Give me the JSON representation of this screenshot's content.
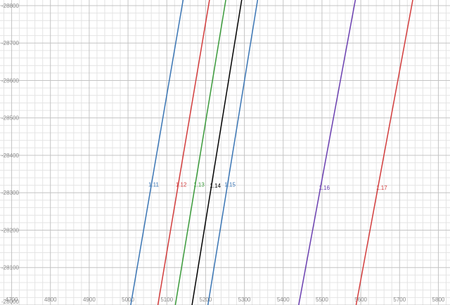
{
  "chart_data": {
    "type": "line",
    "title": "",
    "xlabel": "",
    "ylabel": "",
    "xlim": [
      4670,
      5830
    ],
    "ylim": [
      28000,
      28815
    ],
    "x_ticks": [
      "4700",
      "4800",
      "4900",
      "5000",
      "5100",
      "5200",
      "5300",
      "5400",
      "5500",
      "5600",
      "5700",
      "5800"
    ],
    "y_ticks": [
      "28000",
      "28100",
      "28200",
      "28300",
      "28400",
      "28500",
      "28600",
      "28700",
      "28800"
    ],
    "y_tick_labels": [
      "-28000",
      "-28100",
      "-28200",
      "-28300",
      "-28400",
      "-28500",
      "-28600",
      "-28700",
      "-28800"
    ],
    "grid": true,
    "series": [
      {
        "label": "1.11",
        "color": "#3a75b4",
        "points": [
          [
            5007,
            28000
          ],
          [
            5142,
            28815
          ]
        ],
        "label_at": [
          5066,
          28322
        ]
      },
      {
        "label": "1.12",
        "color": "#d23c3c",
        "points": [
          [
            5077,
            28000
          ],
          [
            5210,
            28815
          ]
        ],
        "label_at": [
          5137,
          28322
        ]
      },
      {
        "label": "1.13",
        "color": "#3a9a3a",
        "points": [
          [
            5122,
            28000
          ],
          [
            5252,
            28815
          ]
        ],
        "label_at": [
          5183,
          28322
        ]
      },
      {
        "label": "1.14",
        "color": "#000000",
        "points": [
          [
            5165,
            28000
          ],
          [
            5293,
            28815
          ]
        ],
        "label_at": [
          5225,
          28319
        ]
      },
      {
        "label": "1.15",
        "color": "#3a75b4",
        "points": [
          [
            5206,
            28000
          ],
          [
            5334,
            28815
          ]
        ],
        "label_at": [
          5263,
          28322
        ]
      },
      {
        "label": "1.16",
        "color": "#6a3fb0",
        "points": [
          [
            5440,
            28000
          ],
          [
            5586,
            28815
          ]
        ],
        "label_at": [
          5506,
          28314
        ]
      },
      {
        "label": "1.17",
        "color": "#d23c3c",
        "points": [
          [
            5588,
            28000
          ],
          [
            5734,
            28815
          ]
        ],
        "label_at": [
          5654,
          28314
        ]
      }
    ]
  }
}
